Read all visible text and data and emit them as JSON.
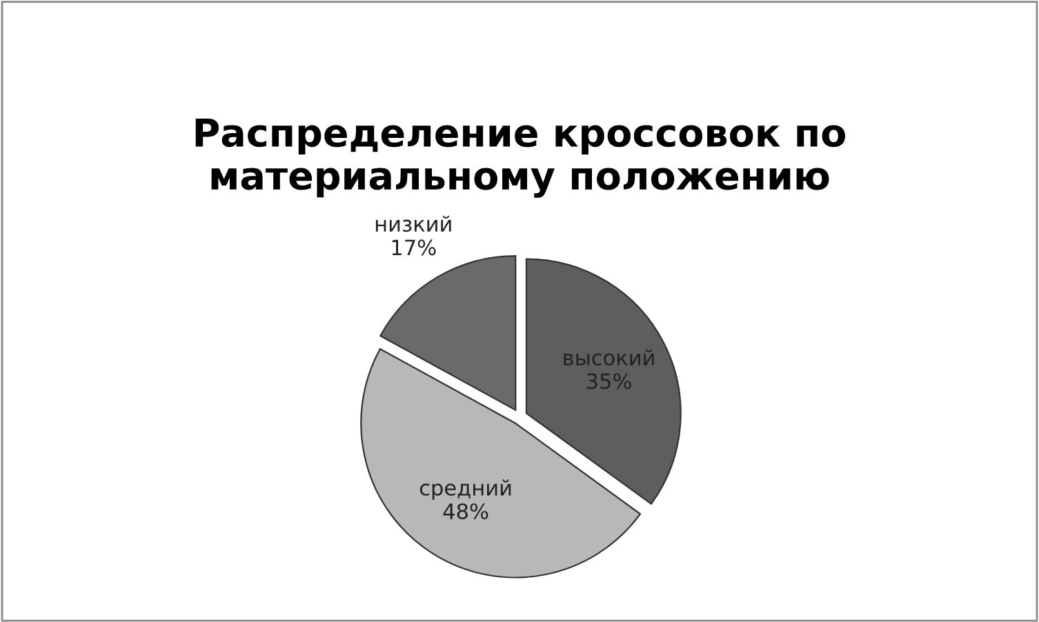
{
  "chart_data": {
    "type": "pie",
    "title": "Распределение кроссовок по\nматериальному положению",
    "categories": [
      "высокий",
      "средний",
      "низкий"
    ],
    "values": [
      35,
      48,
      17
    ],
    "value_labels": [
      "35%",
      "48%",
      "17%"
    ],
    "colors": [
      "#5e5e5e",
      "#b8b8b8",
      "#6a6a6a"
    ],
    "legend": false
  }
}
